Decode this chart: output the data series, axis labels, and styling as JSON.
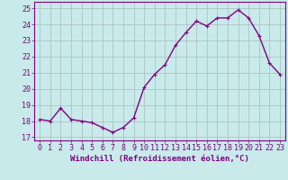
{
  "x": [
    0,
    1,
    2,
    3,
    4,
    5,
    6,
    7,
    8,
    9,
    10,
    11,
    12,
    13,
    14,
    15,
    16,
    17,
    18,
    19,
    20,
    21,
    22,
    23
  ],
  "y": [
    18.1,
    18.0,
    18.8,
    18.1,
    18.0,
    17.9,
    17.6,
    17.3,
    17.6,
    18.2,
    20.1,
    20.9,
    21.5,
    22.7,
    23.5,
    24.2,
    23.9,
    24.4,
    24.4,
    24.9,
    24.4,
    23.3,
    21.6,
    20.9
  ],
  "line_color": "#800080",
  "marker": "+",
  "marker_size": 3,
  "marker_lw": 0.8,
  "bg_color": "#c8eaea",
  "grid_color": "#aabbbb",
  "xlabel": "Windchill (Refroidissement éolien,°C)",
  "xlabel_fontsize": 6.5,
  "xtick_labels": [
    "0",
    "1",
    "2",
    "3",
    "4",
    "5",
    "6",
    "7",
    "8",
    "9",
    "10",
    "11",
    "12",
    "13",
    "14",
    "15",
    "16",
    "17",
    "18",
    "19",
    "20",
    "21",
    "22",
    "23"
  ],
  "ytick_labels": [
    "17",
    "18",
    "19",
    "20",
    "21",
    "22",
    "23",
    "24",
    "25"
  ],
  "yticks": [
    17,
    18,
    19,
    20,
    21,
    22,
    23,
    24,
    25
  ],
  "ylim": [
    16.8,
    25.4
  ],
  "xlim": [
    -0.5,
    23.5
  ],
  "tick_fontsize": 6,
  "line_width": 1.0,
  "spine_color": "#800080"
}
